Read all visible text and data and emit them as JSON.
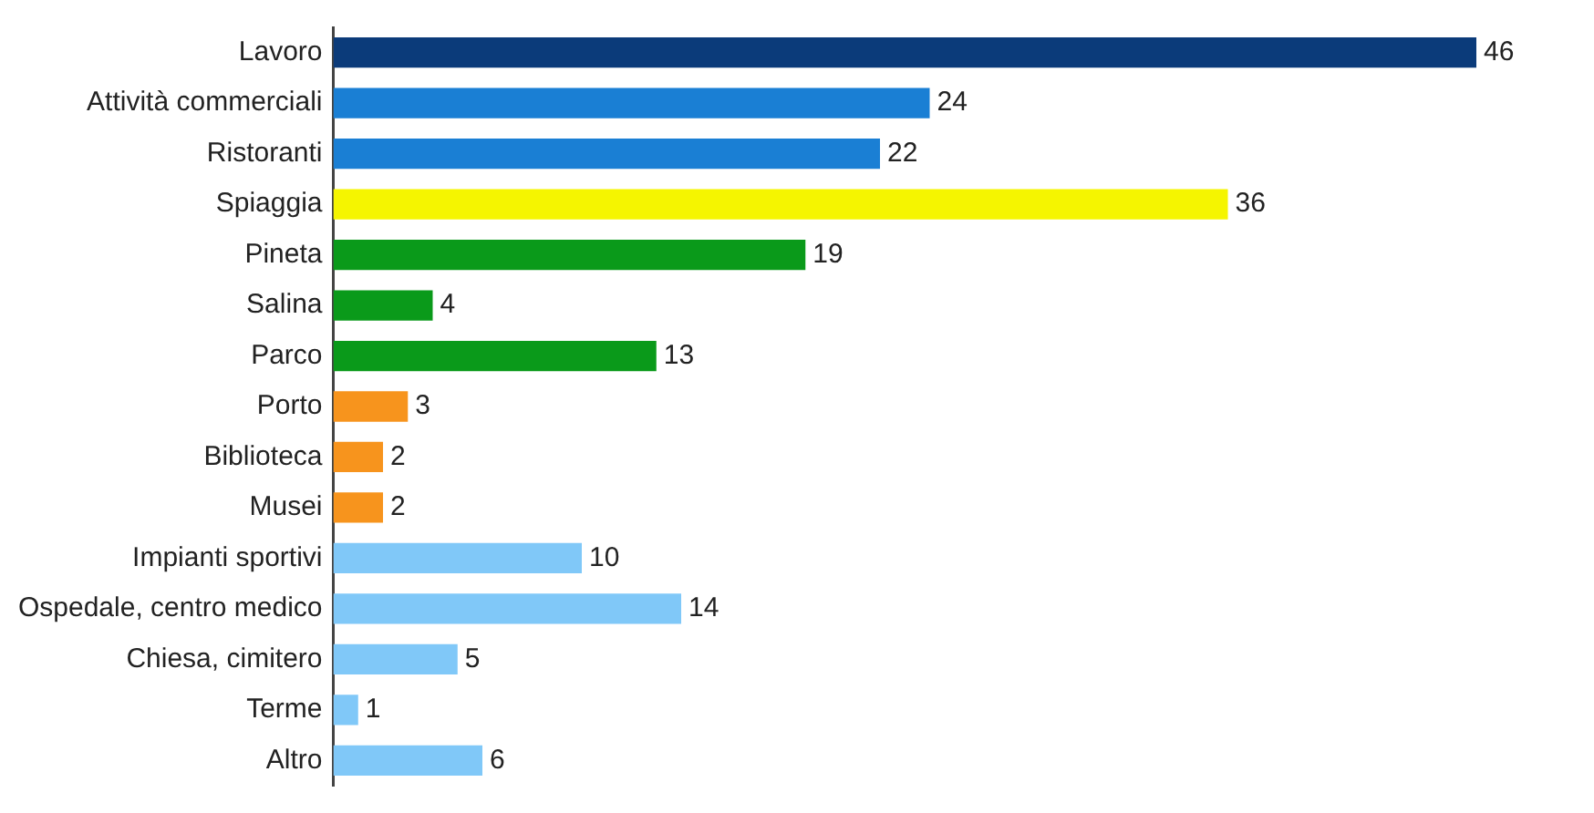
{
  "chart_data": {
    "type": "bar",
    "orientation": "horizontal",
    "categories": [
      "Lavoro",
      "Attività commerciali",
      "Ristoranti",
      "Spiaggia",
      "Pineta",
      "Salina",
      "Parco",
      "Porto",
      "Biblioteca",
      "Musei",
      "Impianti sportivi",
      "Ospedale, centro medico",
      "Chiesa, cimitero",
      "Terme",
      "Altro"
    ],
    "values": [
      46,
      24,
      22,
      36,
      19,
      4,
      13,
      3,
      2,
      2,
      10,
      14,
      5,
      1,
      6
    ],
    "colors": [
      "#0b3b7a",
      "#1a7fd4",
      "#1a7fd4",
      "#f5f500",
      "#0a9a1a",
      "#0a9a1a",
      "#0a9a1a",
      "#f7941d",
      "#f7941d",
      "#f7941d",
      "#80c8f8",
      "#80c8f8",
      "#80c8f8",
      "#80c8f8",
      "#80c8f8"
    ],
    "tick_labels": "y",
    "grid": false,
    "legend": false,
    "data_labels": true
  }
}
